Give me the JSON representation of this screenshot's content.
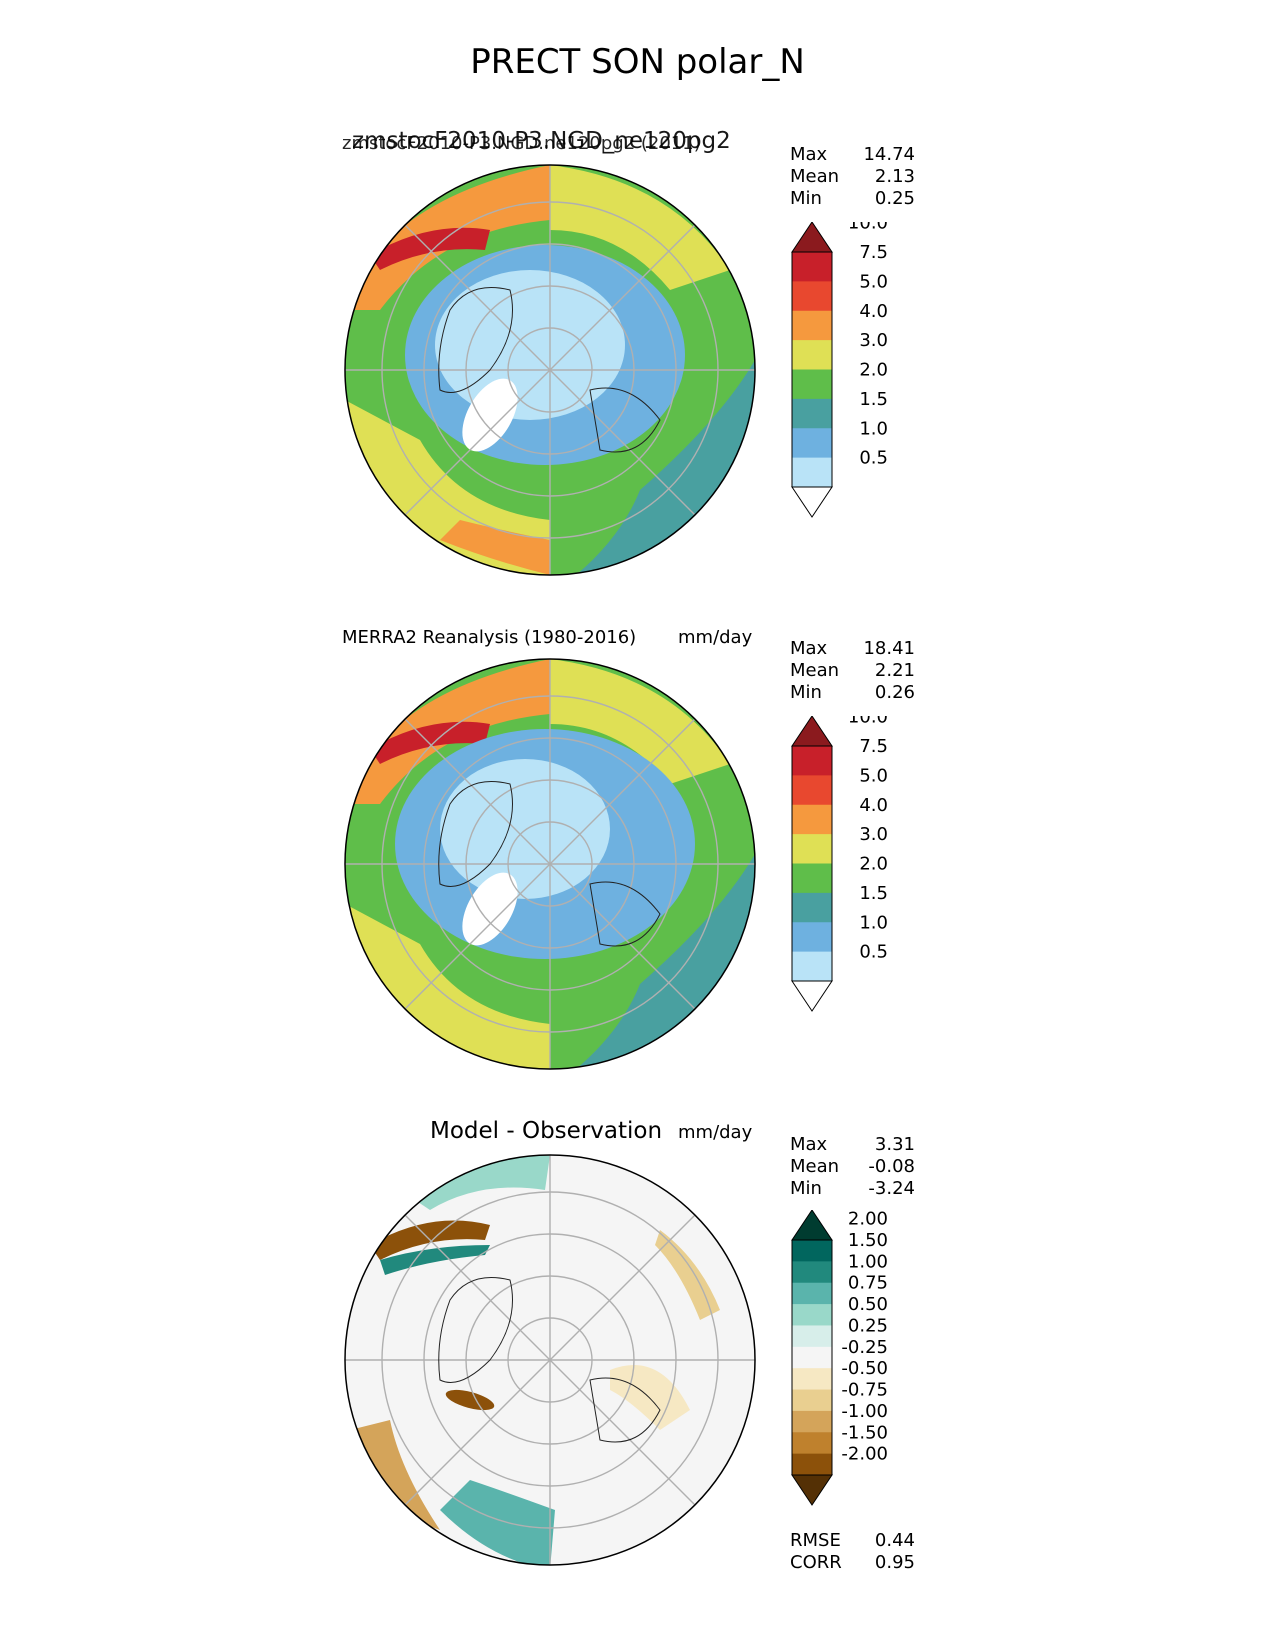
{
  "figure": {
    "title": "PRECT SON polar_N"
  },
  "chart_data": [
    {
      "type": "heatmap",
      "projection": "north polar stereographic",
      "title": "zmstocF2010-P3.NGD.ne120pg2 (2011)",
      "title_overlap": "zmstocF2010-P3.NGD_ne120pg2",
      "units": "",
      "stats": {
        "max_label": "Max",
        "max": "14.74",
        "mean_label": "Mean",
        "mean": "2.13",
        "min_label": "Min",
        "min": "0.25"
      },
      "colorbar": {
        "levels": [
          "0.5",
          "1.0",
          "1.5",
          "2.0",
          "3.0",
          "4.0",
          "5.0",
          "7.5",
          "10.0"
        ],
        "colors": [
          "#ffffff",
          "#b9e3f7",
          "#6eb1e0",
          "#49a0a0",
          "#5fbe4a",
          "#dfe055",
          "#f5993e",
          "#e8482f",
          "#c8202a",
          "#8b1a1e"
        ],
        "extend": "both"
      }
    },
    {
      "type": "heatmap",
      "projection": "north polar stereographic",
      "title": "MERRA2 Reanalysis (1980-2016)",
      "units": "mm/day",
      "stats": {
        "max_label": "Max",
        "max": "18.41",
        "mean_label": "Mean",
        "mean": "2.21",
        "min_label": "Min",
        "min": "0.26"
      },
      "colorbar": {
        "levels": [
          "0.5",
          "1.0",
          "1.5",
          "2.0",
          "3.0",
          "4.0",
          "5.0",
          "7.5",
          "10.0"
        ],
        "colors": [
          "#ffffff",
          "#b9e3f7",
          "#6eb1e0",
          "#49a0a0",
          "#5fbe4a",
          "#dfe055",
          "#f5993e",
          "#e8482f",
          "#c8202a",
          "#8b1a1e"
        ],
        "extend": "both"
      }
    },
    {
      "type": "heatmap",
      "projection": "north polar stereographic",
      "title": "Model - Observation",
      "units": "mm/day",
      "stats": {
        "max_label": "Max",
        "max": "3.31",
        "mean_label": "Mean",
        "mean": "-0.08",
        "min_label": "Min",
        "min": "-3.24"
      },
      "extra_stats": {
        "rmse_label": "RMSE",
        "rmse": "0.44",
        "corr_label": "CORR",
        "corr": "0.95"
      },
      "colorbar": {
        "levels": [
          "-2.00",
          "-1.50",
          "-1.00",
          "-0.75",
          "-0.50",
          "-0.25",
          "0.25",
          "0.50",
          "0.75",
          "1.00",
          "1.50",
          "2.00"
        ],
        "colors": [
          "#543005",
          "#8c510a",
          "#bf812d",
          "#d4a45a",
          "#e9cf90",
          "#f6e8c3",
          "#f5f5f5",
          "#d7eeea",
          "#99d8c9",
          "#5ab4ac",
          "#21897d",
          "#01665e",
          "#003c30"
        ],
        "extend": "both"
      }
    }
  ]
}
